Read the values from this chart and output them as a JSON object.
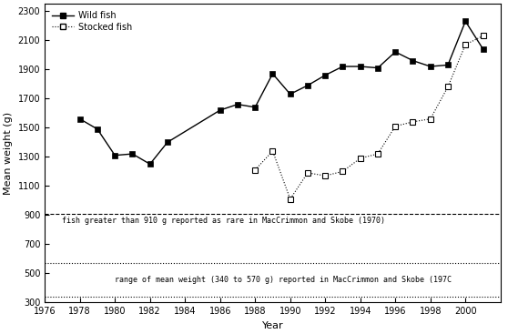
{
  "wild_years": [
    1978,
    1979,
    1980,
    1981,
    1982,
    1983,
    1986,
    1987,
    1988,
    1989,
    1990,
    1991,
    1992,
    1993,
    1994,
    1995,
    1996,
    1997,
    1998,
    1999,
    2000,
    2001
  ],
  "wild_values": [
    1560,
    1490,
    1310,
    1320,
    1250,
    1400,
    1620,
    1660,
    1640,
    1870,
    1730,
    1790,
    1860,
    1920,
    1920,
    1910,
    2020,
    1960,
    1920,
    1930,
    2230,
    2040
  ],
  "stocked_years": [
    1988,
    1989,
    1990,
    1991,
    1992,
    1993,
    1994,
    1995,
    1996,
    1997,
    1998,
    1999,
    2000,
    2001
  ],
  "stocked_values": [
    1210,
    1340,
    1010,
    1190,
    1170,
    1200,
    1290,
    1320,
    1510,
    1540,
    1560,
    1780,
    2070,
    2130
  ],
  "ref_line_910": 910,
  "ref_band_low": 340,
  "ref_band_high": 570,
  "ref_text_910": "fish greater than 910 g reported as rare in MacCrimmon and Skobe (1970)",
  "ref_text_band": "range of mean weight (340 to 570 g) reported in MacCrimmon and Skobe (197C",
  "xlabel": "Year",
  "ylabel": "Mean weight (g)",
  "xlim": [
    1976,
    2002
  ],
  "ylim": [
    300,
    2350
  ],
  "xticks": [
    1976,
    1978,
    1980,
    1982,
    1984,
    1986,
    1988,
    1990,
    1992,
    1994,
    1996,
    1998,
    2000
  ],
  "yticks": [
    300,
    500,
    700,
    900,
    1100,
    1300,
    1500,
    1700,
    1900,
    2100,
    2300
  ],
  "legend_wild": "Wild fish",
  "legend_stocked": "Stocked fish",
  "line_color": "black",
  "bg_color": "white"
}
